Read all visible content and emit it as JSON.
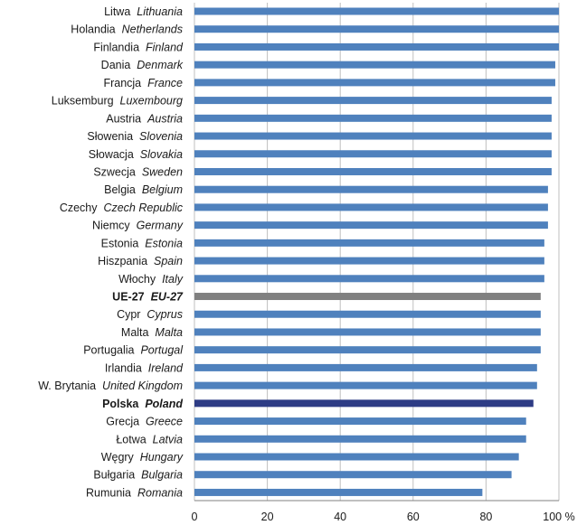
{
  "chart_data": {
    "type": "bar",
    "orientation": "horizontal",
    "xlim": [
      0,
      100
    ],
    "x_ticks": [
      "0",
      "20",
      "40",
      "60",
      "80",
      "100 %"
    ],
    "grid": true,
    "colors": {
      "default": "#4f81bd",
      "eu": "#808080",
      "poland": "#2e3c85"
    },
    "categories": [
      {
        "pl": "Litwa",
        "en": "Lithuania",
        "value": 100,
        "highlight": "default"
      },
      {
        "pl": "Holandia",
        "en": "Netherlands",
        "value": 100,
        "highlight": "default"
      },
      {
        "pl": "Finlandia",
        "en": "Finland",
        "value": 100,
        "highlight": "default"
      },
      {
        "pl": "Dania",
        "en": "Denmark",
        "value": 99,
        "highlight": "default"
      },
      {
        "pl": "Francja",
        "en": "France",
        "value": 99,
        "highlight": "default"
      },
      {
        "pl": "Luksemburg",
        "en": "Luxembourg",
        "value": 98,
        "highlight": "default"
      },
      {
        "pl": "Austria",
        "en": "Austria",
        "value": 98,
        "highlight": "default"
      },
      {
        "pl": "Słowenia",
        "en": "Slovenia",
        "value": 98,
        "highlight": "default"
      },
      {
        "pl": "Słowacja",
        "en": "Slovakia",
        "value": 98,
        "highlight": "default"
      },
      {
        "pl": "Szwecja",
        "en": "Sweden",
        "value": 98,
        "highlight": "default"
      },
      {
        "pl": "Belgia",
        "en": "Belgium",
        "value": 97,
        "highlight": "default"
      },
      {
        "pl": "Czechy",
        "en": "Czech Republic",
        "value": 97,
        "highlight": "default"
      },
      {
        "pl": "Niemcy",
        "en": "Germany",
        "value": 97,
        "highlight": "default"
      },
      {
        "pl": "Estonia",
        "en": "Estonia",
        "value": 96,
        "highlight": "default"
      },
      {
        "pl": "Hiszpania",
        "en": "Spain",
        "value": 96,
        "highlight": "default"
      },
      {
        "pl": "Włochy",
        "en": "Italy",
        "value": 96,
        "highlight": "default"
      },
      {
        "pl": "UE-27",
        "en": "EU-27",
        "value": 95,
        "highlight": "eu"
      },
      {
        "pl": "Cypr",
        "en": "Cyprus",
        "value": 95,
        "highlight": "default"
      },
      {
        "pl": "Malta",
        "en": "Malta",
        "value": 95,
        "highlight": "default"
      },
      {
        "pl": "Portugalia",
        "en": "Portugal",
        "value": 95,
        "highlight": "default"
      },
      {
        "pl": "Irlandia",
        "en": "Ireland",
        "value": 94,
        "highlight": "default"
      },
      {
        "pl": "W. Brytania",
        "en": "United Kingdom",
        "value": 94,
        "highlight": "default"
      },
      {
        "pl": "Polska",
        "en": "Poland",
        "value": 93,
        "highlight": "poland"
      },
      {
        "pl": "Grecja",
        "en": "Greece",
        "value": 91,
        "highlight": "default"
      },
      {
        "pl": "Łotwa",
        "en": "Latvia",
        "value": 91,
        "highlight": "default"
      },
      {
        "pl": "Węgry",
        "en": "Hungary",
        "value": 89,
        "highlight": "default"
      },
      {
        "pl": "Bułgaria",
        "en": "Bulgaria",
        "value": 87,
        "highlight": "default"
      },
      {
        "pl": "Rumunia",
        "en": "Romania",
        "value": 79,
        "highlight": "default"
      }
    ]
  }
}
